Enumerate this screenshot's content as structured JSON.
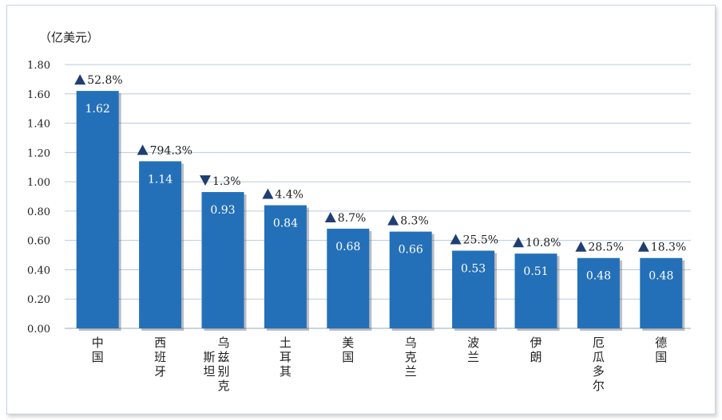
{
  "chart_data": {
    "type": "bar",
    "unit_label": "（亿美元）",
    "categories": [
      "中国",
      "西班牙",
      "乌兹别克斯坦",
      "土耳其",
      "美国",
      "乌克兰",
      "波兰",
      "伊朗",
      "厄瓜多尔",
      "德国"
    ],
    "category_lines": [
      [
        [
          "中",
          "国"
        ]
      ],
      [
        [
          "西",
          "班",
          "牙"
        ]
      ],
      [
        [
          "乌",
          "兹",
          "别",
          "克"
        ],
        [
          "斯",
          "坦"
        ]
      ],
      [
        [
          "土",
          "耳",
          "其"
        ]
      ],
      [
        [
          "美",
          "国"
        ]
      ],
      [
        [
          "乌",
          "克",
          "兰"
        ]
      ],
      [
        [
          "波",
          "兰"
        ]
      ],
      [
        [
          "伊",
          "朗"
        ]
      ],
      [
        [
          "厄",
          "瓜",
          "多",
          "尔"
        ]
      ],
      [
        [
          "德",
          "国"
        ]
      ]
    ],
    "values": [
      1.62,
      1.14,
      0.93,
      0.84,
      0.68,
      0.66,
      0.53,
      0.51,
      0.48,
      0.48
    ],
    "value_labels": [
      "1.62",
      "1.14",
      "0.93",
      "0.84",
      "0.68",
      "0.66",
      "0.53",
      "0.51",
      "0.48",
      "0.48"
    ],
    "change_labels": [
      "52.8%",
      "794.3%",
      "1.3%",
      "4.4%",
      "8.7%",
      "8.3%",
      "25.5%",
      "10.8%",
      "28.5%",
      "18.3%"
    ],
    "change_direction": [
      "up",
      "up",
      "down",
      "up",
      "up",
      "up",
      "up",
      "up",
      "up",
      "up"
    ],
    "ylim": [
      0,
      1.8
    ],
    "yticks": [
      "0.00",
      "0.20",
      "0.40",
      "0.60",
      "0.80",
      "1.00",
      "1.20",
      "1.40",
      "1.60",
      "1.80"
    ],
    "grid": true,
    "colors": {
      "bar": "#2470b8",
      "arrow": "#1f3f73",
      "grid": "#b9c9dd"
    }
  }
}
